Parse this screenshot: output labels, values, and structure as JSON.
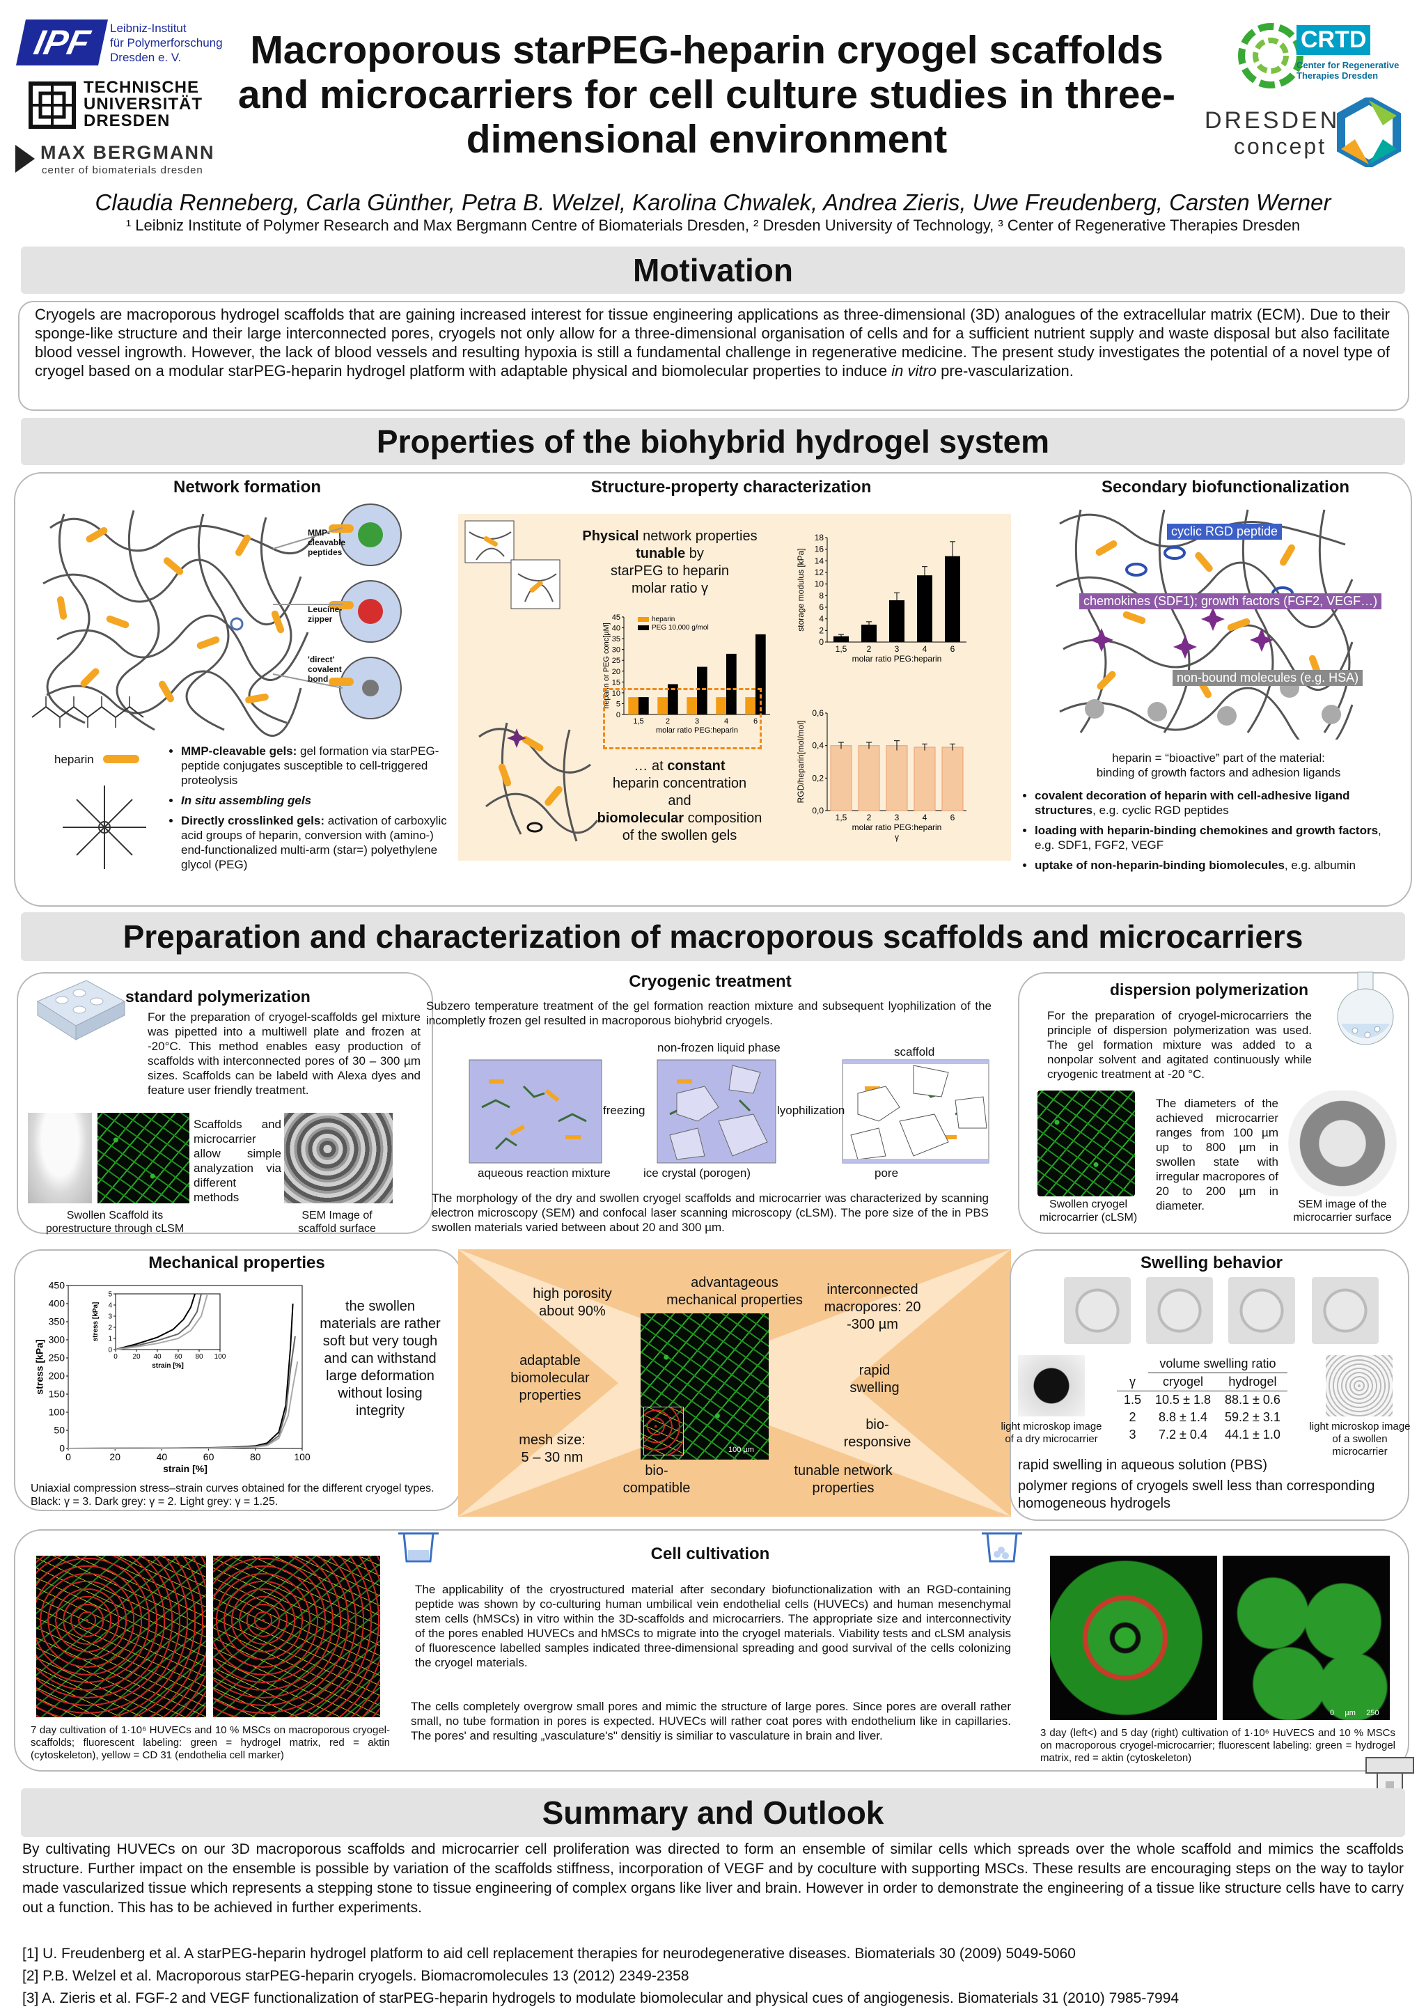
{
  "header": {
    "ipf": [
      "Leibniz-Institut",
      "für Polymerforschung",
      "Dresden e. V."
    ],
    "ipf_mark": "IPF",
    "tud": [
      "TECHNISCHE",
      "UNIVERSITÄT",
      "DRESDEN"
    ],
    "mb": [
      "MAX BERGMANN",
      "center of biomaterials dresden"
    ],
    "crtd": [
      "CRTD",
      "Center for Regenerative",
      "Therapies Dresden"
    ],
    "dc": [
      "DRESDEN",
      "concept"
    ],
    "title": [
      "Macroporous starPEG-heparin cryogel scaffolds",
      "and microcarriers for cell culture studies in three-",
      "dimensional environment"
    ],
    "authors": "Claudia Renneberg, Carla Günther, Petra B. Welzel, Karolina Chwalek, Andrea Zieris, Uwe Freudenberg, Carsten Werner",
    "affil": "¹ Leibniz Institute of Polymer Research and Max Bergmann Centre of Biomaterials Dresden, ² Dresden University of Technology, ³ Center of Regenerative Therapies Dresden"
  },
  "motivation": {
    "title": "Motivation",
    "text_a": "Cryogels are macroporous hydrogel scaffolds that are gaining increased interest for tissue engineering applications as three-dimensional (3D) analogues of the extracellular matrix (ECM). Due to their sponge-like structure and their large interconnected pores, cryogels not only allow for a three-dimensional organisation of cells and for a sufficient nutrient supply and waste disposal but also facilitate blood vessel ingrowth. However, the lack of blood vessels and resulting hypoxia is still a fundamental challenge in regenerative medicine. The present study investigates the potential of a novel type of cryogel based on a modular starPEG-heparin hydrogel platform with adaptable physical and biomolecular properties to induce ",
    "text_em": "in vitro",
    "text_b": " pre-vascularization."
  },
  "properties": {
    "title": "Properties of the biohybrid hydrogel system",
    "network": {
      "title": "Network formation",
      "labels": [
        "MMP-cleavable peptides",
        "Leucine-zipper",
        "'direct' covalent bond"
      ],
      "heparin": "heparin",
      "bullets": [
        {
          "b": "MMP-cleavable gels:",
          "t": " gel formation via starPEG- peptide conjugates susceptible to cell-triggered proteolysis"
        },
        {
          "b": "In situ assembling gels",
          "t": ""
        },
        {
          "b": "Directly crosslinked gels:",
          "t": " activation of carboxylic acid groups of heparin, conversion with (amino-) end-functionalized multi-arm (star=) polyethylene glycol (PEG)"
        }
      ]
    },
    "structure": {
      "title": "Structure-property characterization",
      "phys_a": "Physical",
      "phys_b": " network properties",
      "tunable": "tunable",
      "phys_c": " by",
      "phys_d": "starPEG to heparin",
      "phys_e": "molar ratio γ",
      "const_a": "… at ",
      "const_b": "constant",
      "const_c": "heparin concentration",
      "const_d": "and",
      "const_e": "biomolecular",
      "const_f": " composition",
      "const_g": "of the swollen gels"
    },
    "secondary": {
      "title": "Secondary biofunctionalization",
      "tag1": "cyclic RGD peptide",
      "tag2": "chemokines (SDF1); growth factors (FGF2, VEGF…)",
      "tag3": "non-bound molecules (e.g. HSA)",
      "caption": [
        "heparin = “bioactive” part of the material:",
        "binding of growth factors and adhesion ligands"
      ],
      "bullets": [
        {
          "b": "covalent decoration of heparin with cell-adhesive ligand structures",
          "t": ", e.g. cyclic RGD peptides"
        },
        {
          "b": "loading with heparin-binding chemokines and growth factors",
          "t": ", e.g. SDF1, FGF2, VEGF"
        },
        {
          "b": "uptake of non-heparin-binding biomolecules",
          "t": ", e.g. albumin"
        }
      ]
    }
  },
  "preparation": {
    "title": "Preparation and characterization of macroporous scaffolds and microcarriers",
    "standard": {
      "title": "standard polymerization",
      "text": "For the preparation of cryogel-scaffolds gel mixture was pipetted into a multiwell plate and frozen at -20°C. This method enables easy production of scaffolds with interconnected pores of 30 – 300 µm sizes. Scaffolds can be labeld with Alexa dyes and feature user friendly treatment.",
      "side": "Scaffolds and microcarrier allow simple analyzation via different methods",
      "cap1": "Swollen Scaffold its porestructure through cLSM",
      "cap2": "SEM Image of scaffold surface"
    },
    "cryo": {
      "title": "Cryogenic treatment",
      "text": "Subzero temperature treatment of the gel formation reaction mixture and subsequent lyophilization of the incompletly frozen gel resulted in macroporous biohybrid cryogels.",
      "l_nonfrozen": "non-frozen liquid phase",
      "l_scaffold": "scaffold",
      "l_freezing": "freezing",
      "l_lyo": "lyophilization",
      "l_aqueous": "aqueous reaction mixture",
      "l_ice": "ice crystal (porogen)",
      "l_pore": "pore",
      "text2": "The morphology of the dry and swollen cryogel scaffolds and microcarrier was characterized by scanning electron microscopy (SEM) and confocal laser scanning microscopy (cLSM). The pore size of the in PBS swollen materials varied between about 20 and 300 µm."
    },
    "dispersion": {
      "title": "dispersion polymerization",
      "text": "For the preparation of cryogel-microcarriers the principle of dispersion polymerization was used. The gel formation mixture was added to a nonpolar solvent and agitated continuously while cryogenic treatment at -20 °C.",
      "text2": "The diameters of the achieved microcarrier ranges from 100 µm up to 800 µm in swollen state with irregular macropores of 20 to 200 µm in diameter.",
      "cap1": "Swollen cryogel microcarrier (cLSM)",
      "cap2": "SEM image of the microcarrier surface"
    },
    "mechanical": {
      "title": "Mechanical properties",
      "side": "the swollen materials are rather soft but very tough and can withstand large deformation without losing integrity",
      "caption": "Uniaxial compression stress–strain curves obtained for the different cryogel types. Black: γ = 3. Dark grey: γ = 2. Light grey: γ = 1.25."
    },
    "center": {
      "t1": "advantageous mechanical properties",
      "t2": "high porosity about 90%",
      "t3": "interconnected macropores: 20 -300 µm",
      "t4": "adaptable biomolecular properties",
      "t5": "rapid swelling",
      "t6": "mesh size: 5 – 30 nm",
      "t7": "bio-responsive",
      "t8": "bio-compatible",
      "t9": "tunable network properties",
      "scale": "100 µm"
    },
    "swelling": {
      "title": "Swelling behavior",
      "table_head": "volume swelling ratio",
      "cols": [
        "γ",
        "cryogel",
        "hydrogel"
      ],
      "rows": [
        [
          "1.5",
          "10.5 ± 1.8",
          "88.1 ± 0.6"
        ],
        [
          "2",
          "8.8 ± 1.4",
          "59.2 ± 3.1"
        ],
        [
          "3",
          "7.2 ± 0.4",
          "44.1 ± 1.0"
        ]
      ],
      "cap_left": "light microskop image of a dry microcarrier",
      "cap_right": "light microskop image of a swollen microcarrier",
      "note1": "rapid swelling in aqueous solution (PBS)",
      "note2": "polymer regions of cryogels swell less than corresponding homogeneous hydrogels"
    },
    "cell": {
      "title": "Cell cultivation",
      "text": "The applicability of the cryostructured material after secondary biofunctionalization with an RGD-containing peptide was shown by co-culturing human umbilical vein endothelial cells (HUVECs) and human mesenchymal stem cells (hMSCs) in vitro within the 3D-scaffolds and microcarriers. The appropriate size and interconnectivity of the pores enabled HUVECs and hMSCs to migrate into the cryogel materials. Viability tests and cLSM analysis of fluorescence labelled samples indicated three-dimensional spreading and good survival of the cells colonizing the cryogel materials.",
      "text2": "The cells completely overgrow small pores and mimic the structure of large pores. Since pores are overall rather small, no tube formation in pores is expected. HUVECs will rather coat pores with endothelium like in capillaries. The pores' and resulting „vasculature's\" densitiy is similiar to vasculature in brain and liver.",
      "cap_left": "7 day cultivation of 1·10⁶ HUVECs and 10 % MSCs on macroporous cryogel-scaffolds; fluorescent labeling: green = hydrogel matrix, red = aktin (cytoskeleton), yellow = CD 31 (endothelia cell marker)",
      "cap_right": "3 day (left<) and 5 day (right) cultivation of 1·10⁶ HuVECS and 10 % MSCs on macroporous cryogel-microcarrier; fluorescent labeling: green = hydrogel matrix, red = aktin (cytoskeleton)",
      "scale": "0     µm     250"
    }
  },
  "summary": {
    "title": "Summary and Outlook",
    "text": "By cultivating HUVECs on our 3D macroporous scaffolds and microcarrier cell proliferation was directed to form an ensemble of similar cells which spreads over the whole scaffold and mimics the scaffolds structure. Further impact on the ensemble is possible by variation of the scaffolds stiffness, incorporation of VEGF and by coculture with supporting MSCs. These results are encouraging steps on the way to taylor made vascularized tissue which represents a stepping stone to tissue engineering of complex organs like liver and brain. However in order to demonstrate the engineering of a tissue like structure cells have to carry out a function. This has to be achieved in further experiments.",
    "refs": [
      "[1] U. Freudenberg et al. A starPEG-heparin hydrogel platform to aid cell replacement therapies for neurodegenerative diseases. Biomaterials 30 (2009) 5049-5060",
      "[2] P.B. Welzel et al. Macroporous starPEG-heparin cryogels. Biomacromolecules 13 (2012) 2349-2358",
      "[3] A. Zieris et al. FGF-2 and VEGF functionalization of starPEG-heparin hydrogels to modulate biomolecular and physical cues of angiogenesis. Biomaterials 31 (2010) 7985-7994"
    ]
  },
  "chart_data": [
    {
      "type": "bar",
      "categories": [
        "1,5",
        "2",
        "3",
        "4",
        "6"
      ],
      "series": [
        {
          "name": "heparin",
          "values": [
            8,
            8,
            8,
            8,
            8
          ],
          "color": "#f39c12"
        },
        {
          "name": "PEG 10,000 g/mol",
          "values": [
            8,
            14,
            22,
            28,
            37
          ],
          "color": "#000000"
        }
      ],
      "ylabel": "heparin or PEG conc[µM]",
      "xlabel": "molar ratio PEG:heparin",
      "ylim": [
        0,
        45
      ],
      "yticks": [
        0,
        5,
        10,
        15,
        20,
        25,
        30,
        35,
        40,
        45
      ]
    },
    {
      "type": "bar",
      "categories": [
        "1,5",
        "2",
        "3",
        "4",
        "6"
      ],
      "values": [
        1,
        3,
        7.2,
        11.5,
        14.8
      ],
      "errors": [
        0.3,
        0.5,
        1.3,
        1.5,
        2.5
      ],
      "color": "#000000",
      "ylabel": "storage modulus [kPa]",
      "xlabel": "molar ratio PEG:heparin",
      "ylim": [
        0,
        18
      ],
      "yticks": [
        0,
        2,
        4,
        6,
        8,
        10,
        12,
        14,
        16,
        18
      ]
    },
    {
      "type": "bar",
      "categories": [
        "1,5",
        "2",
        "3",
        "4",
        "6"
      ],
      "values": [
        0.4,
        0.4,
        0.4,
        0.39,
        0.39
      ],
      "errors": [
        0.02,
        0.02,
        0.03,
        0.02,
        0.02
      ],
      "color": "#f6c8a0",
      "ylabel": "RGD/heparin[mol/mol]",
      "xlabel": "molar ratio PEG:heparin",
      "xlabel2": "γ",
      "ylim": [
        0,
        0.6
      ],
      "yticks": [
        "0,0",
        "0,2",
        "0,4",
        "0,6"
      ]
    },
    {
      "type": "line",
      "xlabel": "strain [%]",
      "ylabel": "stress [kPa]",
      "xlim": [
        0,
        100
      ],
      "ylim": [
        0,
        450
      ],
      "xticks": [
        0,
        20,
        40,
        60,
        80,
        100
      ],
      "yticks": [
        0,
        50,
        100,
        150,
        200,
        250,
        300,
        350,
        400,
        450
      ],
      "series": [
        {
          "color": "#000000",
          "x": [
            0,
            20,
            40,
            60,
            70,
            80,
            85,
            90,
            93,
            95,
            96
          ],
          "y": [
            0,
            0.3,
            1,
            2,
            3.5,
            7,
            15,
            45,
            120,
            280,
            400
          ]
        },
        {
          "color": "#666666",
          "x": [
            0,
            20,
            40,
            60,
            70,
            80,
            85,
            90,
            93,
            95,
            97
          ],
          "y": [
            0,
            0.2,
            0.7,
            1.5,
            2.5,
            5,
            11,
            35,
            100,
            220,
            310
          ]
        },
        {
          "color": "#aaaaaa",
          "x": [
            0,
            20,
            40,
            60,
            70,
            80,
            85,
            90,
            94,
            96,
            98
          ],
          "y": [
            0,
            0.15,
            0.5,
            1,
            2,
            4,
            8,
            28,
            90,
            170,
            240
          ]
        }
      ],
      "inset": {
        "xlim": [
          0,
          100
        ],
        "ylim": [
          0,
          5
        ],
        "xticks": [
          0,
          20,
          40,
          60,
          80,
          100
        ],
        "yticks": [
          0,
          1,
          2,
          3,
          4,
          5
        ],
        "xlabel": "strain [%]",
        "ylabel": "stress [kPa]",
        "series": [
          {
            "color": "#000000",
            "x": [
              0,
              20,
              40,
              55,
              65,
              72,
              76
            ],
            "y": [
              0,
              0.5,
              1.1,
              1.8,
              2.7,
              3.8,
              5
            ]
          },
          {
            "color": "#666666",
            "x": [
              0,
              20,
              40,
              60,
              70,
              78,
              82
            ],
            "y": [
              0,
              0.35,
              0.8,
              1.4,
              2.2,
              3.4,
              5
            ]
          },
          {
            "color": "#aaaaaa",
            "x": [
              0,
              20,
              40,
              60,
              72,
              82,
              88
            ],
            "y": [
              0,
              0.25,
              0.55,
              1,
              1.7,
              3,
              5
            ]
          }
        ]
      }
    }
  ]
}
